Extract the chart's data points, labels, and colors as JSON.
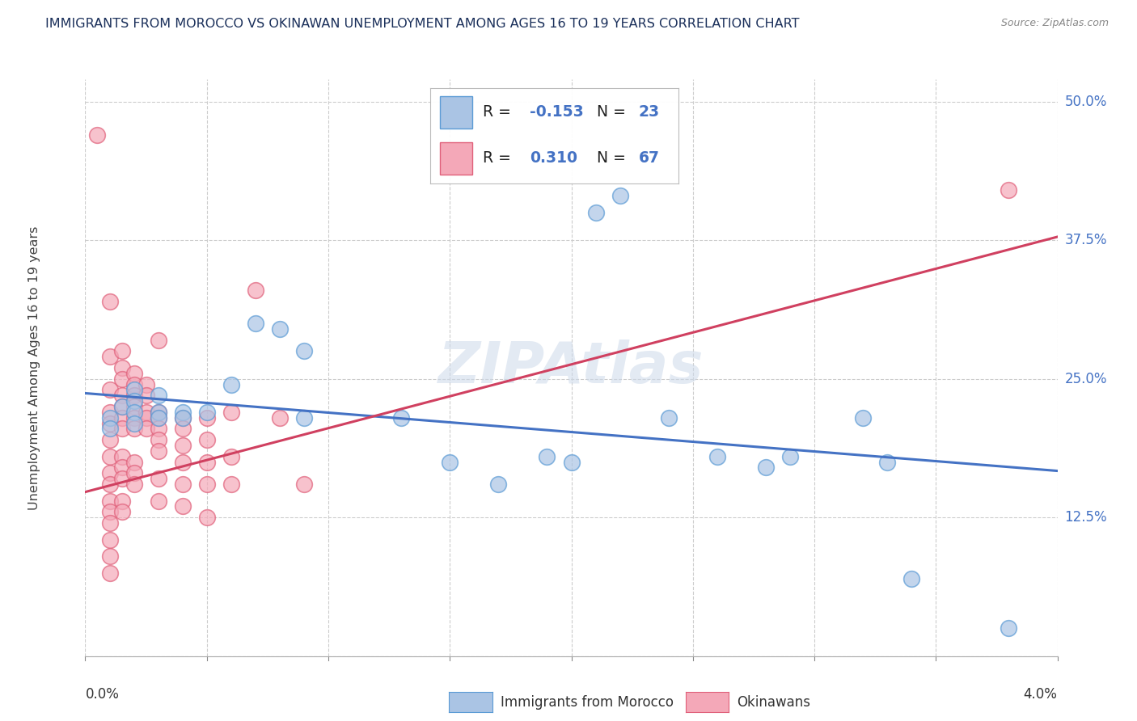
{
  "title": "IMMIGRANTS FROM MOROCCO VS OKINAWAN UNEMPLOYMENT AMONG AGES 16 TO 19 YEARS CORRELATION CHART",
  "source": "Source: ZipAtlas.com",
  "ylabel": "Unemployment Among Ages 16 to 19 years",
  "ytick_labels": [
    "",
    "12.5%",
    "25.0%",
    "37.5%",
    "50.0%"
  ],
  "ytick_values": [
    0.0,
    0.125,
    0.25,
    0.375,
    0.5
  ],
  "xmin": 0.0,
  "xmax": 0.04,
  "ymin": 0.0,
  "ymax": 0.52,
  "blue_label": "Immigrants from Morocco",
  "pink_label": "Okinawans",
  "blue_color": "#aac4e4",
  "pink_color": "#f4a8b8",
  "blue_edge_color": "#5b9bd5",
  "pink_edge_color": "#e0607a",
  "blue_line_color": "#4472c4",
  "pink_line_color": "#d04060",
  "legend_r_color": "#4472c4",
  "watermark_color": "#ccd9ea",
  "watermark_text": "ZIPAtlas",
  "blue_line_y0": 0.237,
  "blue_line_y1": 0.167,
  "pink_line_y0": 0.148,
  "pink_line_y1": 0.378,
  "blue_points": [
    [
      0.001,
      0.215
    ],
    [
      0.001,
      0.205
    ],
    [
      0.0015,
      0.225
    ],
    [
      0.002,
      0.24
    ],
    [
      0.002,
      0.23
    ],
    [
      0.002,
      0.22
    ],
    [
      0.002,
      0.21
    ],
    [
      0.003,
      0.235
    ],
    [
      0.003,
      0.22
    ],
    [
      0.003,
      0.215
    ],
    [
      0.004,
      0.22
    ],
    [
      0.004,
      0.215
    ],
    [
      0.005,
      0.22
    ],
    [
      0.006,
      0.245
    ],
    [
      0.007,
      0.3
    ],
    [
      0.008,
      0.295
    ],
    [
      0.009,
      0.275
    ],
    [
      0.009,
      0.215
    ],
    [
      0.013,
      0.215
    ],
    [
      0.015,
      0.175
    ],
    [
      0.017,
      0.155
    ],
    [
      0.019,
      0.18
    ],
    [
      0.02,
      0.175
    ],
    [
      0.021,
      0.4
    ],
    [
      0.022,
      0.415
    ],
    [
      0.024,
      0.215
    ],
    [
      0.026,
      0.18
    ],
    [
      0.028,
      0.17
    ],
    [
      0.029,
      0.18
    ],
    [
      0.032,
      0.215
    ],
    [
      0.033,
      0.175
    ],
    [
      0.034,
      0.07
    ],
    [
      0.038,
      0.025
    ]
  ],
  "pink_points": [
    [
      0.0005,
      0.47
    ],
    [
      0.001,
      0.32
    ],
    [
      0.001,
      0.27
    ],
    [
      0.001,
      0.24
    ],
    [
      0.001,
      0.22
    ],
    [
      0.001,
      0.21
    ],
    [
      0.001,
      0.195
    ],
    [
      0.001,
      0.18
    ],
    [
      0.001,
      0.165
    ],
    [
      0.001,
      0.155
    ],
    [
      0.001,
      0.14
    ],
    [
      0.001,
      0.13
    ],
    [
      0.001,
      0.12
    ],
    [
      0.001,
      0.105
    ],
    [
      0.001,
      0.09
    ],
    [
      0.001,
      0.075
    ],
    [
      0.0015,
      0.275
    ],
    [
      0.0015,
      0.26
    ],
    [
      0.0015,
      0.25
    ],
    [
      0.0015,
      0.235
    ],
    [
      0.0015,
      0.225
    ],
    [
      0.0015,
      0.215
    ],
    [
      0.0015,
      0.205
    ],
    [
      0.0015,
      0.18
    ],
    [
      0.0015,
      0.17
    ],
    [
      0.0015,
      0.16
    ],
    [
      0.0015,
      0.14
    ],
    [
      0.0015,
      0.13
    ],
    [
      0.002,
      0.255
    ],
    [
      0.002,
      0.245
    ],
    [
      0.002,
      0.235
    ],
    [
      0.002,
      0.225
    ],
    [
      0.002,
      0.215
    ],
    [
      0.002,
      0.205
    ],
    [
      0.002,
      0.175
    ],
    [
      0.002,
      0.165
    ],
    [
      0.002,
      0.155
    ],
    [
      0.0025,
      0.245
    ],
    [
      0.0025,
      0.235
    ],
    [
      0.0025,
      0.22
    ],
    [
      0.0025,
      0.215
    ],
    [
      0.0025,
      0.205
    ],
    [
      0.003,
      0.285
    ],
    [
      0.003,
      0.22
    ],
    [
      0.003,
      0.215
    ],
    [
      0.003,
      0.205
    ],
    [
      0.003,
      0.195
    ],
    [
      0.003,
      0.185
    ],
    [
      0.003,
      0.16
    ],
    [
      0.003,
      0.14
    ],
    [
      0.004,
      0.215
    ],
    [
      0.004,
      0.205
    ],
    [
      0.004,
      0.19
    ],
    [
      0.004,
      0.175
    ],
    [
      0.004,
      0.155
    ],
    [
      0.004,
      0.135
    ],
    [
      0.005,
      0.215
    ],
    [
      0.005,
      0.195
    ],
    [
      0.005,
      0.175
    ],
    [
      0.005,
      0.155
    ],
    [
      0.005,
      0.125
    ],
    [
      0.006,
      0.22
    ],
    [
      0.006,
      0.18
    ],
    [
      0.006,
      0.155
    ],
    [
      0.007,
      0.33
    ],
    [
      0.008,
      0.215
    ],
    [
      0.009,
      0.155
    ],
    [
      0.038,
      0.42
    ]
  ]
}
